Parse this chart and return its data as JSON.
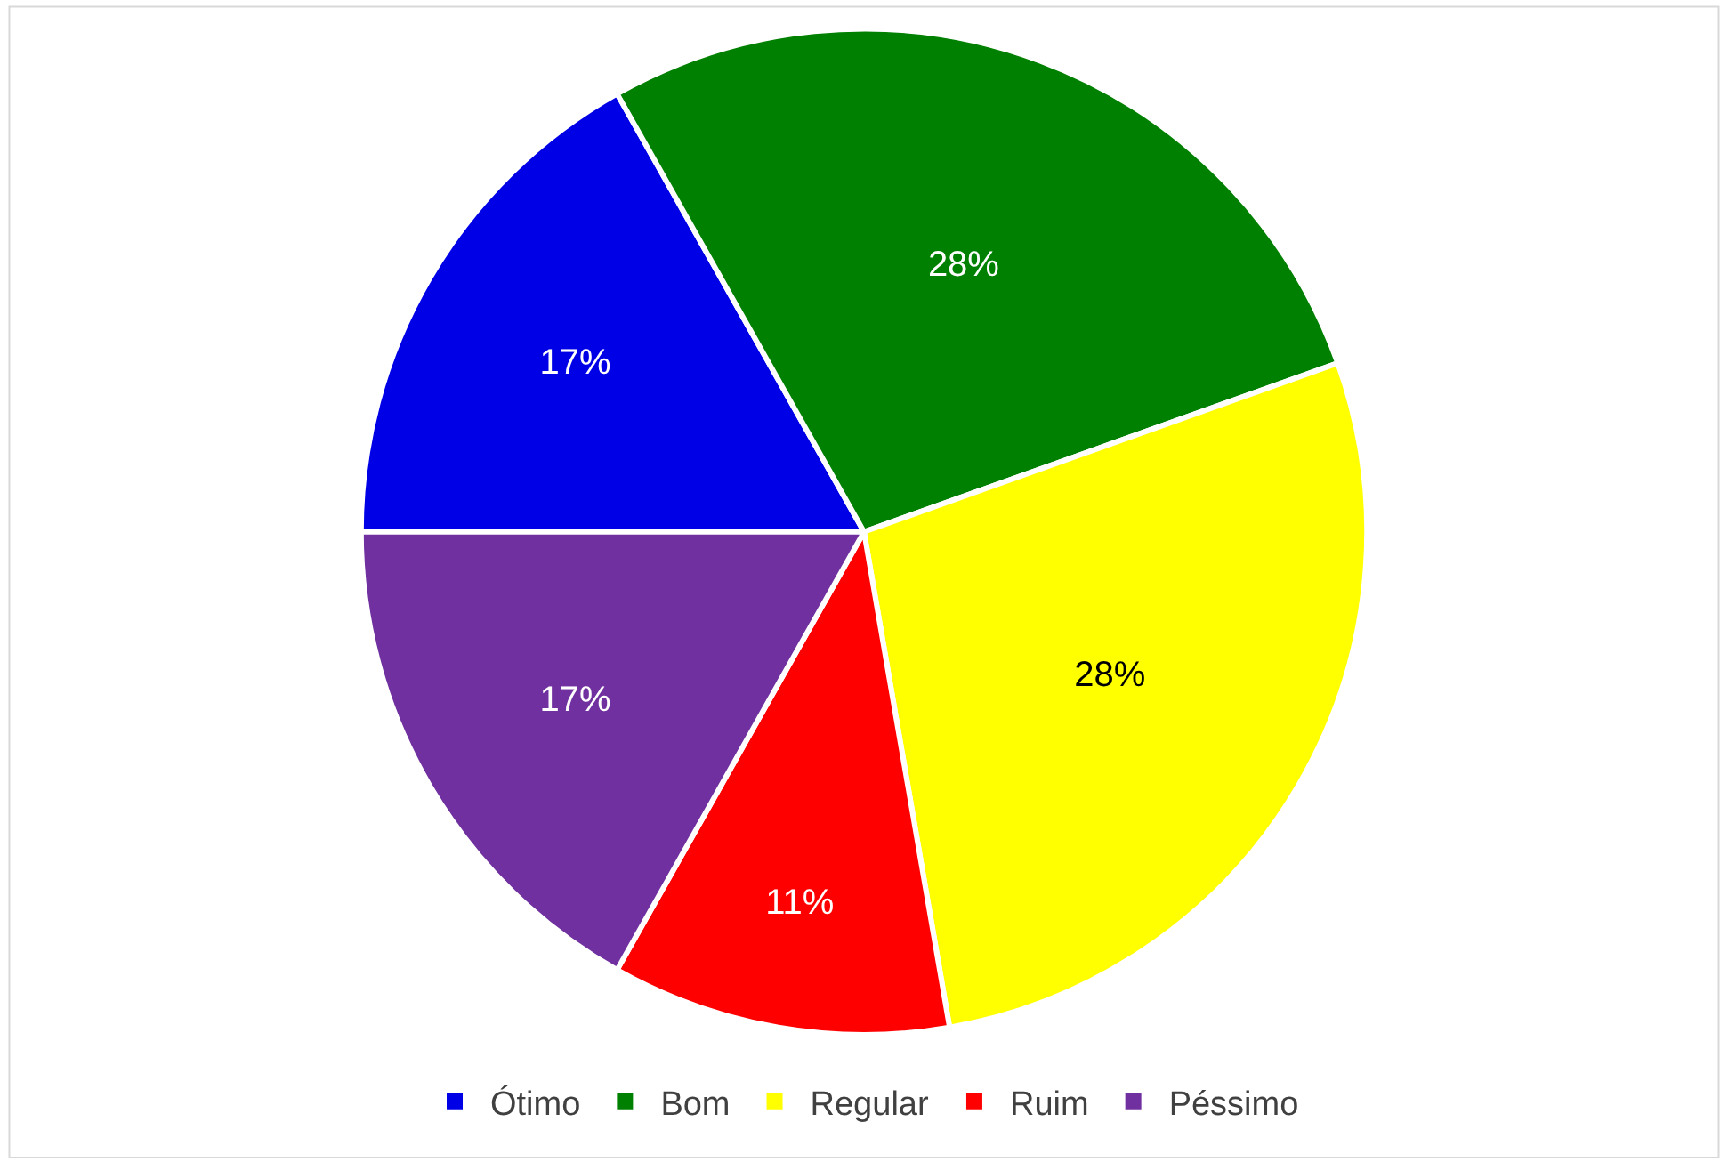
{
  "chart_data": {
    "type": "pie",
    "categories": [
      "Ótimo",
      "Bom",
      "Regular",
      "Ruim",
      "Péssimo"
    ],
    "values": [
      17,
      28,
      28,
      11,
      17
    ],
    "colors": [
      "#0000e6",
      "#008000",
      "#ffff00",
      "#ff0000",
      "#7030a0"
    ],
    "value_labels": [
      "17%",
      "28%",
      "28%",
      "11%",
      "17%"
    ],
    "legend": "bottom"
  }
}
